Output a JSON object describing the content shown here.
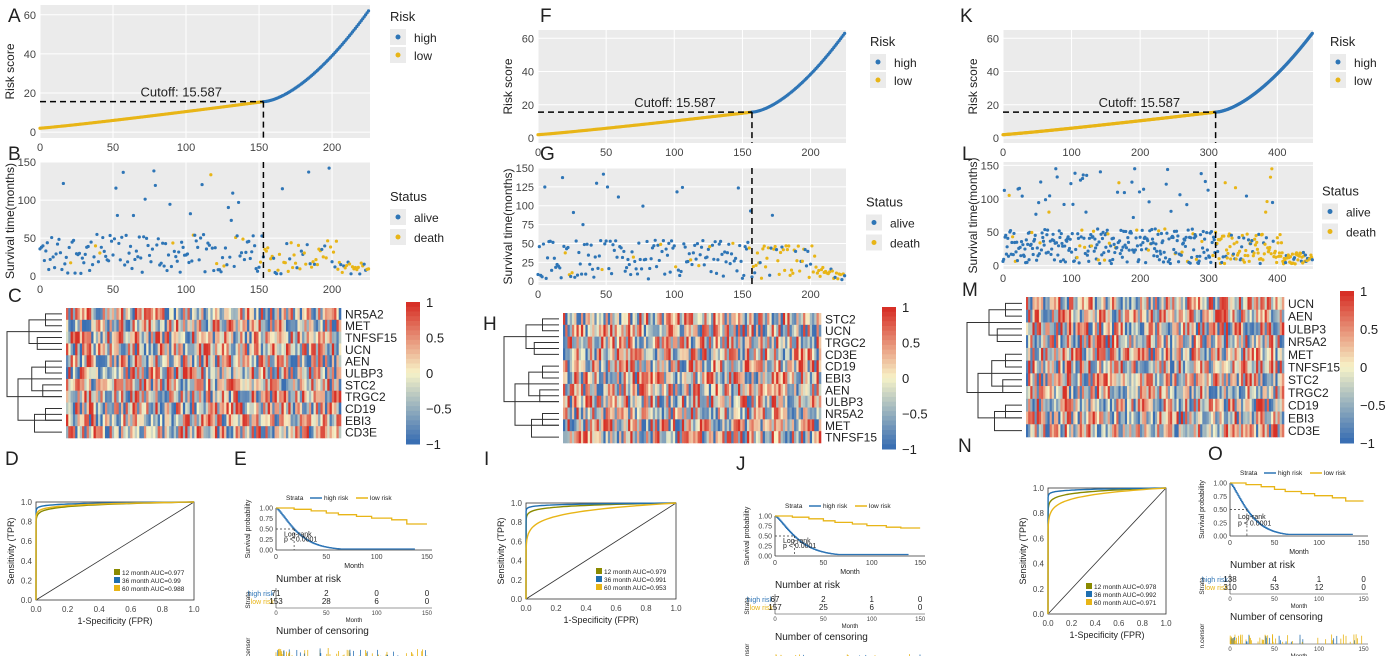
{
  "colors": {
    "high": "#2e75b6",
    "low": "#e8b517",
    "panel_bg": "#ebebeb",
    "grid": "#ffffff",
    "heat_low": "#3a6fb3",
    "heat_mid": "#f7f3c8",
    "heat_high": "#d73027",
    "roc_12": "#8a8a00",
    "roc_36": "#1f6fb0",
    "roc_60": "#e8b517"
  },
  "chart_data": [
    {
      "type": "scatter",
      "panel": "A",
      "letter": "A",
      "ylabel": "Risk score",
      "n": 226,
      "cutoff_index": 153,
      "cutoff_value": 15.587,
      "cutoff_label": "Cutoff: 15.587",
      "xlim": [
        0,
        226
      ],
      "ylim": [
        -3,
        65
      ],
      "xticks": [
        "0",
        "50",
        "100",
        "150",
        "200"
      ],
      "xtick_values": [
        0,
        50,
        100,
        150,
        200
      ],
      "yticks": [
        "0",
        "20",
        "40",
        "60"
      ],
      "ytick_values": [
        0,
        20,
        40,
        60
      ],
      "score_range": [
        2,
        62
      ],
      "legend_title": "Risk",
      "legend": [
        "high",
        "low"
      ]
    },
    {
      "type": "scatter",
      "panel": "B",
      "letter": "B",
      "ylabel": "Survival time(months)",
      "n": 226,
      "cutoff_index": 153,
      "xlim": [
        0,
        226
      ],
      "ylim": [
        -5,
        150
      ],
      "xticks": [
        "0",
        "50",
        "100",
        "150",
        "200"
      ],
      "xtick_values": [
        0,
        50,
        100,
        150,
        200
      ],
      "yticks": [
        "0",
        "50",
        "100",
        "150"
      ],
      "ytick_values": [
        0,
        50,
        100,
        150
      ],
      "legend_title": "Status",
      "legend": [
        "alive",
        "death"
      ]
    },
    {
      "type": "heatmap",
      "panel": "C",
      "letter": "C",
      "genes": [
        "NR5A2",
        "MET",
        "TNFSF15",
        "UCN",
        "AEN",
        "ULBP3",
        "STC2",
        "TRGC2",
        "CD19",
        "EBI3",
        "CD3E"
      ],
      "scale_labels": [
        "1",
        "0.5",
        "0",
        "−0.5",
        "−1"
      ],
      "scale_values": [
        1,
        0.5,
        0,
        -0.5,
        -1
      ]
    },
    {
      "type": "line",
      "panel": "D",
      "letter": "D",
      "xlabel": "1-Specificity (FPR)",
      "ylabel": "Sensitivity (TPR)",
      "ticks": [
        "0.0",
        "0.2",
        "0.4",
        "0.6",
        "0.8",
        "1.0"
      ],
      "tick_values": [
        0,
        0.2,
        0.4,
        0.6,
        0.8,
        1.0
      ],
      "series": [
        {
          "name": "12 month AUC=0.977",
          "auc": 0.977
        },
        {
          "name": "36 month AUC=0.99",
          "auc": 0.99
        },
        {
          "name": "60 month AUC=0.988",
          "auc": 0.988
        }
      ]
    },
    {
      "type": "line",
      "panel": "E",
      "letter": "E",
      "strata_title": "Strata",
      "legend": [
        "high risk",
        "low risk"
      ],
      "ylabel": "Survival probability",
      "xlabel": "Month",
      "yticks": [
        "0.00",
        "0.25",
        "0.50",
        "0.75",
        "1.00"
      ],
      "ytick_values": [
        0,
        0.25,
        0.5,
        0.75,
        1
      ],
      "xticks": [
        "0",
        "50",
        "100",
        "150"
      ],
      "xtick_values": [
        0,
        50,
        100,
        150
      ],
      "logrank": "Log-rank",
      "pval": "p < 0.0001",
      "risk_title": "Number at risk",
      "risk_high": [
        "71",
        "2",
        "0",
        "0"
      ],
      "risk_low": [
        "153",
        "28",
        "6",
        "0"
      ],
      "risk_labels": [
        "high risk",
        "low risk"
      ],
      "censor_title": "Number of censoring",
      "strata_axis": "Strata",
      "censor_axis": "n.censor",
      "high_median": 18,
      "low_end": 0.62
    },
    {
      "type": "scatter",
      "panel": "F",
      "letter": "F",
      "ylabel": "Risk score",
      "n": 226,
      "cutoff_index": 157,
      "cutoff_value": 15.587,
      "cutoff_label": "Cutoff: 15.587",
      "xlim": [
        0,
        226
      ],
      "ylim": [
        -3,
        65
      ],
      "xticks": [
        "0",
        "50",
        "100",
        "150",
        "200"
      ],
      "xtick_values": [
        0,
        50,
        100,
        150,
        200
      ],
      "yticks": [
        "0",
        "20",
        "40",
        "60"
      ],
      "ytick_values": [
        0,
        20,
        40,
        60
      ],
      "score_range": [
        2,
        63
      ],
      "legend_title": "Risk",
      "legend": [
        "high",
        "low"
      ]
    },
    {
      "type": "scatter",
      "panel": "G",
      "letter": "G",
      "ylabel": "Survival time(months)",
      "n": 226,
      "cutoff_index": 157,
      "xlim": [
        0,
        226
      ],
      "ylim": [
        -5,
        150
      ],
      "xticks": [
        "0",
        "50",
        "100",
        "150",
        "200"
      ],
      "xtick_values": [
        0,
        50,
        100,
        150,
        200
      ],
      "yticks": [
        "0",
        "25",
        "50",
        "75",
        "100",
        "125",
        "150"
      ],
      "ytick_values": [
        0,
        25,
        50,
        75,
        100,
        125,
        150
      ],
      "legend_title": "Status",
      "legend": [
        "alive",
        "death"
      ]
    },
    {
      "type": "heatmap",
      "panel": "H",
      "letter": "H",
      "genes": [
        "STC2",
        "UCN",
        "TRGC2",
        "CD3E",
        "CD19",
        "EBI3",
        "AEN",
        "ULBP3",
        "NR5A2",
        "MET",
        "TNFSF15"
      ],
      "scale_labels": [
        "1",
        "0.5",
        "0",
        "−0.5",
        "−1"
      ],
      "scale_values": [
        1,
        0.5,
        0,
        -0.5,
        -1
      ]
    },
    {
      "type": "line",
      "panel": "I",
      "letter": "I",
      "xlabel": "1-Specificity (FPR)",
      "ylabel": "Sensitivity (TPR)",
      "ticks": [
        "0.0",
        "0.2",
        "0.4",
        "0.6",
        "0.8",
        "1.0"
      ],
      "tick_values": [
        0,
        0.2,
        0.4,
        0.6,
        0.8,
        1.0
      ],
      "series": [
        {
          "name": "12 month AUC=0.979",
          "auc": 0.979
        },
        {
          "name": "36 month AUC=0.991",
          "auc": 0.991
        },
        {
          "name": "60 month AUC=0.953",
          "auc": 0.953
        }
      ]
    },
    {
      "type": "line",
      "panel": "J",
      "letter": "J",
      "strata_title": "Strata",
      "legend": [
        "high risk",
        "low risk"
      ],
      "ylabel": "Survival probability",
      "xlabel": "Month",
      "yticks": [
        "0.00",
        "0.25",
        "0.50",
        "0.75",
        "1.00"
      ],
      "ytick_values": [
        0,
        0.25,
        0.5,
        0.75,
        1
      ],
      "xticks": [
        "0",
        "50",
        "100",
        "150"
      ],
      "xtick_values": [
        0,
        50,
        100,
        150
      ],
      "logrank": "Log-rank",
      "pval": "p < 0.0001",
      "risk_title": "Number at risk",
      "risk_high": [
        "67",
        "2",
        "1",
        "0"
      ],
      "risk_low": [
        "157",
        "25",
        "6",
        "0"
      ],
      "risk_labels": [
        "high risk",
        "low risk"
      ],
      "censor_title": "Number of censoring",
      "strata_axis": "Strata",
      "censor_axis": "n.censor",
      "high_median": 20,
      "low_end": 0.7
    },
    {
      "type": "scatter",
      "panel": "K",
      "letter": "K",
      "ylabel": "Risk score",
      "n": 452,
      "cutoff_index": 310,
      "cutoff_value": 15.587,
      "cutoff_label": "Cutoff: 15.587",
      "xlim": [
        0,
        452
      ],
      "ylim": [
        -3,
        65
      ],
      "xticks": [
        "0",
        "100",
        "200",
        "300",
        "400"
      ],
      "xtick_values": [
        0,
        100,
        200,
        300,
        400
      ],
      "yticks": [
        "0",
        "20",
        "40",
        "60"
      ],
      "ytick_values": [
        0,
        20,
        40,
        60
      ],
      "score_range": [
        2,
        63
      ],
      "legend_title": "Risk",
      "legend": [
        "high",
        "low"
      ]
    },
    {
      "type": "scatter",
      "panel": "L",
      "letter": "L",
      "ylabel": "Survival time(months)",
      "n": 452,
      "cutoff_index": 310,
      "xlim": [
        0,
        452
      ],
      "ylim": [
        -5,
        155
      ],
      "xticks": [
        "0",
        "100",
        "200",
        "300",
        "400"
      ],
      "xtick_values": [
        0,
        100,
        200,
        300,
        400
      ],
      "yticks": [
        "0",
        "50",
        "100",
        "150"
      ],
      "ytick_values": [
        0,
        50,
        100,
        150
      ],
      "legend_title": "Status",
      "legend": [
        "alive",
        "death"
      ]
    },
    {
      "type": "heatmap",
      "panel": "M",
      "letter": "M",
      "genes": [
        "UCN",
        "AEN",
        "ULBP3",
        "NR5A2",
        "MET",
        "TNFSF15",
        "STC2",
        "TRGC2",
        "CD19",
        "EBI3",
        "CD3E"
      ],
      "scale_labels": [
        "1",
        "0.5",
        "0",
        "−0.5",
        "−1"
      ],
      "scale_values": [
        1,
        0.5,
        0,
        -0.5,
        -1
      ]
    },
    {
      "type": "line",
      "panel": "N",
      "letter": "N",
      "xlabel": "1-Specificity (FPR)",
      "ylabel": "Sensitivity (TPR)",
      "ticks": [
        "0.0",
        "0.2",
        "0.4",
        "0.6",
        "0.8",
        "1.0"
      ],
      "tick_values": [
        0,
        0.2,
        0.4,
        0.6,
        0.8,
        1.0
      ],
      "series": [
        {
          "name": "12 month AUC=0.978",
          "auc": 0.978
        },
        {
          "name": "36 month AUC=0.992",
          "auc": 0.992
        },
        {
          "name": "60 month AUC=0.971",
          "auc": 0.971
        }
      ]
    },
    {
      "type": "line",
      "panel": "O",
      "letter": "O",
      "strata_title": "Strata",
      "legend": [
        "high risk",
        "low risk"
      ],
      "ylabel": "Survival probability",
      "xlabel": "Month",
      "yticks": [
        "0.00",
        "0.25",
        "0.50",
        "0.75",
        "1.00"
      ],
      "ytick_values": [
        0,
        0.25,
        0.5,
        0.75,
        1
      ],
      "xticks": [
        "0",
        "50",
        "100",
        "150"
      ],
      "xtick_values": [
        0,
        50,
        100,
        150
      ],
      "logrank": "Log-rank",
      "pval": "p < 0.0001",
      "risk_title": "Number at risk",
      "risk_high": [
        "138",
        "4",
        "1",
        "0"
      ],
      "risk_low": [
        "310",
        "53",
        "12",
        "0"
      ],
      "risk_labels": [
        "high risk",
        "low risk"
      ],
      "censor_title": "Number of censoring",
      "strata_axis": "Strata",
      "censor_axis": "n.censor",
      "high_median": 19,
      "low_end": 0.66
    }
  ]
}
